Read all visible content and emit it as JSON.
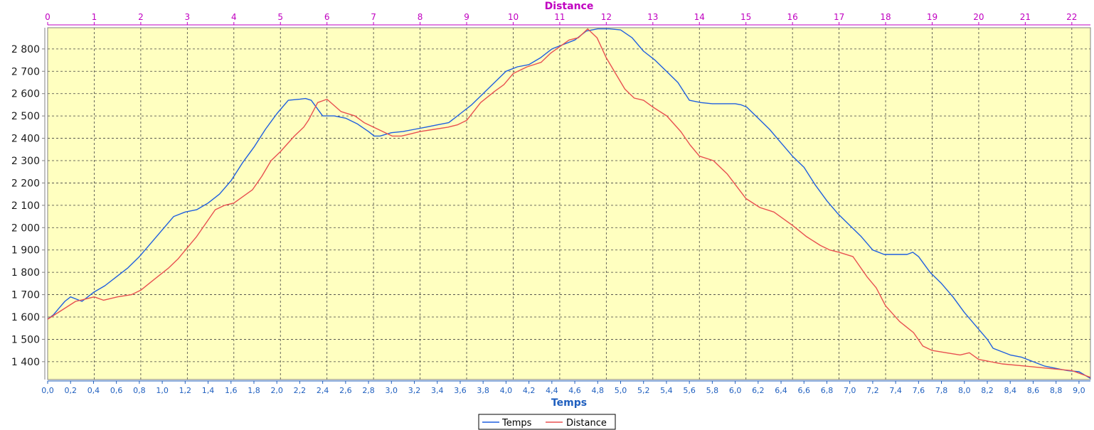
{
  "chart_data": {
    "type": "line",
    "title": "",
    "xlabel": "Temps",
    "x2label": "Distance",
    "ylabel": "",
    "xlim": [
      0,
      9.1
    ],
    "x2lim": [
      0,
      22.4
    ],
    "ylim": [
      1320,
      2895
    ],
    "xticks": [
      "0,0",
      "0,2",
      "0,4",
      "0,6",
      "0,8",
      "1,0",
      "1,2",
      "1,4",
      "1,6",
      "1,8",
      "2,0",
      "2,2",
      "2,4",
      "2,6",
      "2,8",
      "3,0",
      "3,2",
      "3,4",
      "3,6",
      "3,8",
      "4,0",
      "4,2",
      "4,4",
      "4,6",
      "4,8",
      "5,0",
      "5,2",
      "5,4",
      "5,6",
      "5,8",
      "6,0",
      "6,2",
      "6,4",
      "6,6",
      "6,8",
      "7,0",
      "7,2",
      "7,4",
      "7,6",
      "7,8",
      "8,0",
      "8,2",
      "8,4",
      "8,6",
      "8,8",
      "9,0"
    ],
    "x2ticks": [
      "0",
      "1",
      "2",
      "3",
      "4",
      "5",
      "6",
      "7",
      "8",
      "9",
      "10",
      "11",
      "12",
      "13",
      "14",
      "15",
      "16",
      "17",
      "18",
      "19",
      "20",
      "21",
      "22"
    ],
    "yticks": [
      "1 400",
      "1 500",
      "1 600",
      "1 700",
      "1 800",
      "1 900",
      "2 000",
      "2 100",
      "2 200",
      "2 300",
      "2 400",
      "2 500",
      "2 600",
      "2 700",
      "2 800"
    ],
    "grid": true,
    "legend_position": "bottom-center",
    "background_color": "#ffffc0",
    "series": [
      {
        "name": "Temps",
        "axis": "bottom",
        "color": "#1f5fdf",
        "x": [
          0.0,
          0.05,
          0.1,
          0.15,
          0.2,
          0.25,
          0.3,
          0.35,
          0.4,
          0.5,
          0.6,
          0.7,
          0.8,
          0.9,
          1.0,
          1.1,
          1.2,
          1.3,
          1.4,
          1.5,
          1.6,
          1.7,
          1.8,
          1.9,
          2.0,
          2.1,
          2.2,
          2.25,
          2.3,
          2.4,
          2.5,
          2.6,
          2.7,
          2.8,
          2.85,
          2.9,
          3.0,
          3.1,
          3.2,
          3.3,
          3.4,
          3.5,
          3.6,
          3.7,
          3.8,
          3.9,
          4.0,
          4.1,
          4.2,
          4.3,
          4.4,
          4.5,
          4.6,
          4.7,
          4.8,
          4.9,
          5.0,
          5.1,
          5.2,
          5.3,
          5.4,
          5.5,
          5.55,
          5.6,
          5.65,
          5.7,
          5.8,
          6.0,
          6.05,
          6.1,
          6.2,
          6.3,
          6.4,
          6.5,
          6.6,
          6.7,
          6.8,
          6.9,
          7.0,
          7.1,
          7.2,
          7.3,
          7.4,
          7.5,
          7.55,
          7.6,
          7.7,
          7.8,
          7.9,
          8.0,
          8.1,
          8.2,
          8.25,
          8.3,
          8.4,
          8.5,
          8.6,
          8.7,
          8.8,
          8.85,
          8.9,
          9.0,
          9.1
        ],
        "y": [
          1590,
          1610,
          1640,
          1670,
          1690,
          1680,
          1670,
          1690,
          1710,
          1740,
          1780,
          1820,
          1870,
          1930,
          1990,
          2050,
          2070,
          2080,
          2110,
          2150,
          2210,
          2290,
          2360,
          2440,
          2510,
          2570,
          2575,
          2578,
          2570,
          2500,
          2500,
          2490,
          2465,
          2430,
          2410,
          2410,
          2425,
          2430,
          2440,
          2450,
          2460,
          2470,
          2510,
          2550,
          2600,
          2650,
          2700,
          2720,
          2730,
          2760,
          2800,
          2820,
          2840,
          2880,
          2890,
          2890,
          2885,
          2850,
          2790,
          2750,
          2700,
          2650,
          2610,
          2570,
          2565,
          2560,
          2555,
          2555,
          2550,
          2540,
          2490,
          2440,
          2380,
          2320,
          2270,
          2190,
          2120,
          2060,
          2010,
          1960,
          1900,
          1880,
          1880,
          1880,
          1890,
          1870,
          1800,
          1750,
          1690,
          1620,
          1560,
          1500,
          1460,
          1450,
          1430,
          1420,
          1400,
          1380,
          1370,
          1365,
          1360,
          1355,
          1325
        ]
      },
      {
        "name": "Distance",
        "axis": "top",
        "color": "#e85050",
        "x": [
          0.0,
          0.3,
          0.6,
          0.8,
          1.0,
          1.2,
          1.5,
          1.8,
          2.0,
          2.3,
          2.6,
          2.8,
          3.0,
          3.2,
          3.4,
          3.6,
          3.8,
          4.0,
          4.2,
          4.4,
          4.6,
          4.8,
          5.0,
          5.3,
          5.5,
          5.6,
          5.8,
          6.0,
          6.3,
          6.6,
          6.8,
          7.0,
          7.2,
          7.4,
          7.6,
          7.8,
          8.0,
          8.3,
          8.6,
          8.8,
          9.0,
          9.3,
          9.6,
          9.8,
          10.0,
          10.3,
          10.6,
          10.8,
          11.0,
          11.2,
          11.4,
          11.6,
          11.8,
          12.0,
          12.2,
          12.4,
          12.6,
          12.8,
          13.0,
          13.3,
          13.6,
          13.8,
          14.0,
          14.3,
          14.6,
          15.0,
          15.3,
          15.6,
          16.0,
          16.3,
          16.6,
          16.8,
          17.0,
          17.3,
          17.6,
          17.8,
          18.0,
          18.3,
          18.6,
          18.8,
          19.0,
          19.3,
          19.6,
          19.8,
          20.0,
          20.5,
          21.0,
          21.5,
          22.0,
          22.4
        ],
        "y": [
          1590,
          1630,
          1670,
          1680,
          1690,
          1675,
          1690,
          1700,
          1720,
          1770,
          1820,
          1860,
          1910,
          1960,
          2020,
          2080,
          2100,
          2110,
          2140,
          2170,
          2230,
          2300,
          2340,
          2410,
          2450,
          2480,
          2560,
          2575,
          2520,
          2500,
          2470,
          2450,
          2430,
          2410,
          2410,
          2420,
          2430,
          2440,
          2450,
          2460,
          2480,
          2560,
          2610,
          2640,
          2690,
          2720,
          2740,
          2780,
          2810,
          2840,
          2850,
          2890,
          2850,
          2760,
          2690,
          2620,
          2580,
          2570,
          2540,
          2500,
          2430,
          2370,
          2320,
          2300,
          2240,
          2130,
          2090,
          2070,
          2010,
          1960,
          1920,
          1900,
          1890,
          1870,
          1780,
          1730,
          1650,
          1580,
          1530,
          1470,
          1450,
          1440,
          1430,
          1440,
          1410,
          1390,
          1380,
          1370,
          1360,
          1330
        ]
      }
    ]
  }
}
